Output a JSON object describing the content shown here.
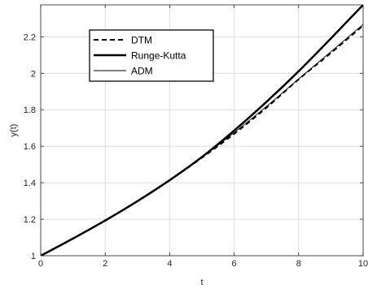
{
  "chart_data": {
    "type": "line",
    "xlabel": "t",
    "ylabel": "y(t)",
    "xlim": [
      0,
      10
    ],
    "ylim": [
      1,
      2.375
    ],
    "xticks": [
      0,
      2,
      4,
      6,
      8,
      10
    ],
    "yticks": [
      1,
      1.2,
      1.4,
      1.6,
      1.8,
      2,
      2.2
    ],
    "xtick_labels": [
      "0",
      "2",
      "4",
      "6",
      "8",
      "10"
    ],
    "ytick_labels": [
      "1",
      "1.2",
      "1.4",
      "1.6",
      "1.8",
      "2",
      "2.2"
    ],
    "grid": true,
    "legend_position": "top-left",
    "series": [
      {
        "name": "DTM",
        "style": "dashed",
        "color": "#000000",
        "x": [
          0,
          1,
          2,
          3,
          4,
          5,
          6,
          7,
          8,
          9,
          10
        ],
        "y": [
          1.0,
          1.094,
          1.193,
          1.299,
          1.414,
          1.537,
          1.668,
          1.811,
          1.967,
          2.111,
          2.262
        ]
      },
      {
        "name": "Runge-Kutta",
        "style": "thick",
        "color": "#000000",
        "x": [
          0,
          1,
          2,
          3,
          4,
          5,
          6,
          7,
          8,
          9,
          10
        ],
        "y": [
          1.0,
          1.094,
          1.193,
          1.299,
          1.414,
          1.541,
          1.686,
          1.843,
          2.011,
          2.191,
          2.375
        ]
      },
      {
        "name": "ADM",
        "style": "thin",
        "color": "#000000",
        "x": [
          0,
          1,
          2,
          3,
          4,
          5,
          6,
          7,
          8,
          9,
          10
        ],
        "y": [
          1.0,
          1.094,
          1.193,
          1.299,
          1.414,
          1.539,
          1.675,
          1.818,
          1.969,
          2.118,
          2.268
        ]
      }
    ]
  }
}
